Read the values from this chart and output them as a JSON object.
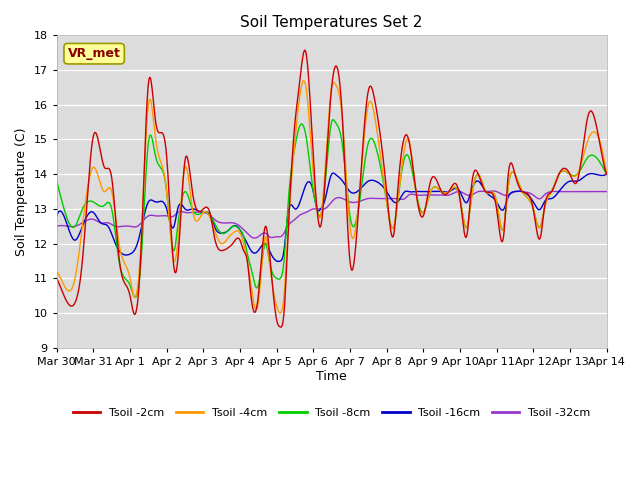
{
  "title": "Soil Temperatures Set 2",
  "xlabel": "Time",
  "ylabel": "Soil Temperature (C)",
  "ylim": [
    9.0,
    18.0
  ],
  "yticks": [
    9.0,
    10.0,
    11.0,
    12.0,
    13.0,
    14.0,
    15.0,
    16.0,
    17.0,
    18.0
  ],
  "xtick_labels": [
    "Mar 30",
    "Mar 31",
    "Apr 1",
    "Apr 2",
    "Apr 3",
    "Apr 4",
    "Apr 5",
    "Apr 6",
    "Apr 7",
    "Apr 8",
    "Apr 9",
    "Apr 10",
    "Apr 11",
    "Apr 12",
    "Apr 13",
    "Apr 14"
  ],
  "annotation_text": "VR_met",
  "colors": {
    "Tsoil -2cm": "#cc0000",
    "Tsoil -4cm": "#ff9900",
    "Tsoil -8cm": "#00cc00",
    "Tsoil -16cm": "#0000cc",
    "Tsoil -32cm": "#9933cc"
  },
  "bg_color": "#dcdcdc",
  "legend_labels": [
    "Tsoil -2cm",
    "Tsoil -4cm",
    "Tsoil -8cm",
    "Tsoil -16cm",
    "Tsoil -32cm"
  ],
  "keypoints_2cm": [
    [
      0.0,
      11.0
    ],
    [
      0.2,
      10.5
    ],
    [
      0.5,
      10.3
    ],
    [
      0.7,
      11.5
    ],
    [
      1.0,
      15.1
    ],
    [
      1.3,
      14.2
    ],
    [
      1.5,
      13.9
    ],
    [
      1.7,
      11.6
    ],
    [
      2.0,
      10.5
    ],
    [
      2.1,
      10.0
    ],
    [
      2.3,
      11.8
    ],
    [
      2.5,
      16.6
    ],
    [
      2.7,
      15.5
    ],
    [
      3.0,
      14.5
    ],
    [
      3.2,
      11.3
    ],
    [
      3.3,
      11.5
    ],
    [
      3.5,
      14.4
    ],
    [
      3.7,
      13.5
    ],
    [
      4.0,
      13.0
    ],
    [
      4.2,
      12.8
    ],
    [
      4.3,
      12.2
    ],
    [
      4.5,
      11.8
    ],
    [
      4.7,
      11.9
    ],
    [
      4.8,
      12.0
    ],
    [
      5.0,
      12.1
    ],
    [
      5.1,
      11.8
    ],
    [
      5.2,
      11.5
    ],
    [
      5.3,
      10.5
    ],
    [
      5.5,
      10.5
    ],
    [
      5.7,
      12.5
    ],
    [
      5.8,
      11.8
    ],
    [
      6.0,
      9.8
    ],
    [
      6.1,
      9.6
    ],
    [
      6.2,
      10.0
    ],
    [
      6.3,
      12.0
    ],
    [
      6.5,
      15.5
    ],
    [
      6.6,
      16.4
    ],
    [
      6.8,
      17.5
    ],
    [
      7.0,
      14.5
    ],
    [
      7.1,
      13.0
    ],
    [
      7.2,
      12.5
    ],
    [
      7.3,
      13.5
    ],
    [
      7.5,
      16.5
    ],
    [
      7.6,
      17.1
    ],
    [
      7.8,
      15.5
    ],
    [
      8.0,
      11.5
    ],
    [
      8.2,
      12.5
    ],
    [
      8.5,
      16.4
    ],
    [
      8.7,
      16.0
    ],
    [
      9.0,
      13.5
    ],
    [
      9.2,
      12.3
    ],
    [
      9.3,
      13.5
    ],
    [
      9.5,
      15.1
    ],
    [
      9.6,
      15.0
    ],
    [
      9.8,
      13.5
    ],
    [
      10.0,
      12.8
    ],
    [
      10.2,
      13.8
    ],
    [
      10.5,
      13.5
    ],
    [
      10.7,
      13.5
    ],
    [
      11.0,
      13.3
    ],
    [
      11.2,
      12.3
    ],
    [
      11.3,
      13.5
    ],
    [
      11.5,
      14.0
    ],
    [
      11.7,
      13.5
    ],
    [
      12.0,
      13.0
    ],
    [
      12.2,
      12.3
    ],
    [
      12.3,
      13.8
    ],
    [
      12.5,
      14.0
    ],
    [
      12.7,
      13.5
    ],
    [
      13.0,
      13.0
    ],
    [
      13.2,
      12.2
    ],
    [
      13.3,
      13.0
    ],
    [
      13.5,
      13.5
    ],
    [
      13.7,
      14.0
    ],
    [
      14.0,
      14.0
    ],
    [
      14.2,
      13.8
    ],
    [
      14.5,
      15.7
    ],
    [
      14.7,
      15.5
    ],
    [
      15.0,
      14.0
    ]
  ],
  "keypoints_4cm": [
    [
      0.0,
      11.2
    ],
    [
      0.2,
      10.8
    ],
    [
      0.5,
      11.0
    ],
    [
      0.7,
      12.5
    ],
    [
      1.0,
      14.2
    ],
    [
      1.3,
      13.5
    ],
    [
      1.5,
      13.5
    ],
    [
      1.7,
      12.0
    ],
    [
      2.0,
      11.0
    ],
    [
      2.1,
      10.5
    ],
    [
      2.3,
      12.0
    ],
    [
      2.5,
      16.0
    ],
    [
      2.7,
      15.0
    ],
    [
      3.0,
      13.5
    ],
    [
      3.2,
      11.5
    ],
    [
      3.3,
      12.0
    ],
    [
      3.5,
      14.2
    ],
    [
      3.7,
      13.0
    ],
    [
      4.0,
      12.9
    ],
    [
      4.2,
      12.7
    ],
    [
      4.3,
      12.4
    ],
    [
      4.5,
      12.0
    ],
    [
      4.7,
      12.2
    ],
    [
      4.8,
      12.3
    ],
    [
      5.0,
      12.3
    ],
    [
      5.1,
      12.0
    ],
    [
      5.2,
      11.5
    ],
    [
      5.3,
      10.8
    ],
    [
      5.5,
      10.3
    ],
    [
      5.7,
      12.2
    ],
    [
      5.8,
      11.5
    ],
    [
      6.0,
      10.2
    ],
    [
      6.1,
      10.0
    ],
    [
      6.2,
      10.5
    ],
    [
      6.3,
      12.2
    ],
    [
      6.5,
      15.0
    ],
    [
      6.6,
      16.0
    ],
    [
      6.8,
      16.5
    ],
    [
      7.0,
      14.0
    ],
    [
      7.1,
      13.0
    ],
    [
      7.2,
      12.8
    ],
    [
      7.3,
      13.8
    ],
    [
      7.5,
      16.5
    ],
    [
      7.6,
      16.6
    ],
    [
      7.8,
      15.5
    ],
    [
      8.0,
      12.5
    ],
    [
      8.2,
      12.8
    ],
    [
      8.5,
      16.0
    ],
    [
      8.7,
      15.5
    ],
    [
      9.0,
      13.2
    ],
    [
      9.2,
      12.5
    ],
    [
      9.3,
      13.2
    ],
    [
      9.5,
      14.8
    ],
    [
      9.6,
      15.0
    ],
    [
      9.8,
      13.5
    ],
    [
      10.0,
      12.9
    ],
    [
      10.2,
      13.5
    ],
    [
      10.5,
      13.5
    ],
    [
      10.7,
      13.5
    ],
    [
      11.0,
      13.3
    ],
    [
      11.2,
      12.5
    ],
    [
      11.3,
      13.2
    ],
    [
      11.5,
      14.0
    ],
    [
      11.7,
      13.5
    ],
    [
      12.0,
      13.2
    ],
    [
      12.2,
      12.5
    ],
    [
      12.3,
      13.5
    ],
    [
      12.5,
      14.0
    ],
    [
      12.7,
      13.5
    ],
    [
      13.0,
      13.0
    ],
    [
      13.2,
      12.5
    ],
    [
      13.3,
      13.0
    ],
    [
      13.5,
      13.5
    ],
    [
      13.7,
      14.0
    ],
    [
      14.0,
      14.0
    ],
    [
      14.2,
      14.0
    ],
    [
      14.5,
      15.0
    ],
    [
      14.7,
      15.2
    ],
    [
      15.0,
      14.0
    ]
  ],
  "keypoints_8cm": [
    [
      0.0,
      13.8
    ],
    [
      0.2,
      13.0
    ],
    [
      0.5,
      12.5
    ],
    [
      0.7,
      13.0
    ],
    [
      1.0,
      13.2
    ],
    [
      1.3,
      13.1
    ],
    [
      1.5,
      13.0
    ],
    [
      1.7,
      11.5
    ],
    [
      2.0,
      10.8
    ],
    [
      2.1,
      10.5
    ],
    [
      2.3,
      11.5
    ],
    [
      2.5,
      14.9
    ],
    [
      2.7,
      14.5
    ],
    [
      3.0,
      13.5
    ],
    [
      3.2,
      11.8
    ],
    [
      3.3,
      12.5
    ],
    [
      3.5,
      13.5
    ],
    [
      3.7,
      13.0
    ],
    [
      4.0,
      12.9
    ],
    [
      4.2,
      12.8
    ],
    [
      4.3,
      12.6
    ],
    [
      4.5,
      12.3
    ],
    [
      4.7,
      12.4
    ],
    [
      4.8,
      12.5
    ],
    [
      5.0,
      12.4
    ],
    [
      5.1,
      12.2
    ],
    [
      5.2,
      11.7
    ],
    [
      5.3,
      11.3
    ],
    [
      5.5,
      10.8
    ],
    [
      5.7,
      12.0
    ],
    [
      5.8,
      11.5
    ],
    [
      6.0,
      11.0
    ],
    [
      6.1,
      11.0
    ],
    [
      6.2,
      11.5
    ],
    [
      6.3,
      13.0
    ],
    [
      6.5,
      14.8
    ],
    [
      6.6,
      15.3
    ],
    [
      6.8,
      15.1
    ],
    [
      7.0,
      13.5
    ],
    [
      7.1,
      13.0
    ],
    [
      7.2,
      12.8
    ],
    [
      7.3,
      13.5
    ],
    [
      7.5,
      15.5
    ],
    [
      7.6,
      15.5
    ],
    [
      7.8,
      14.8
    ],
    [
      8.0,
      12.8
    ],
    [
      8.2,
      12.8
    ],
    [
      8.5,
      14.9
    ],
    [
      8.7,
      14.8
    ],
    [
      9.0,
      13.2
    ],
    [
      9.2,
      12.5
    ],
    [
      9.3,
      13.2
    ],
    [
      9.5,
      14.5
    ],
    [
      9.6,
      14.5
    ],
    [
      9.8,
      13.5
    ],
    [
      10.0,
      12.9
    ],
    [
      10.2,
      13.5
    ],
    [
      10.5,
      13.5
    ],
    [
      10.7,
      13.5
    ],
    [
      11.0,
      13.3
    ],
    [
      11.2,
      12.5
    ],
    [
      11.3,
      13.2
    ],
    [
      11.5,
      14.0
    ],
    [
      11.7,
      13.5
    ],
    [
      12.0,
      13.2
    ],
    [
      12.2,
      12.5
    ],
    [
      12.3,
      13.5
    ],
    [
      12.5,
      14.0
    ],
    [
      12.7,
      13.5
    ],
    [
      13.0,
      13.0
    ],
    [
      13.2,
      12.5
    ],
    [
      13.3,
      13.0
    ],
    [
      13.5,
      13.5
    ],
    [
      13.7,
      14.0
    ],
    [
      14.0,
      14.0
    ],
    [
      14.2,
      14.0
    ],
    [
      14.5,
      14.5
    ],
    [
      14.7,
      14.5
    ],
    [
      15.0,
      14.0
    ]
  ],
  "keypoints_16cm": [
    [
      0.0,
      12.8
    ],
    [
      0.3,
      12.5
    ],
    [
      0.5,
      12.1
    ],
    [
      0.7,
      12.5
    ],
    [
      1.0,
      12.9
    ],
    [
      1.2,
      12.6
    ],
    [
      1.4,
      12.5
    ],
    [
      1.6,
      12.0
    ],
    [
      1.8,
      11.7
    ],
    [
      2.0,
      11.7
    ],
    [
      2.2,
      12.0
    ],
    [
      2.5,
      13.2
    ],
    [
      2.7,
      13.2
    ],
    [
      3.0,
      13.0
    ],
    [
      3.2,
      12.5
    ],
    [
      3.3,
      13.0
    ],
    [
      3.5,
      13.0
    ],
    [
      3.7,
      13.0
    ],
    [
      4.0,
      12.9
    ],
    [
      4.2,
      12.8
    ],
    [
      4.3,
      12.5
    ],
    [
      4.5,
      12.3
    ],
    [
      4.7,
      12.4
    ],
    [
      4.8,
      12.5
    ],
    [
      5.0,
      12.4
    ],
    [
      5.1,
      12.2
    ],
    [
      5.2,
      12.0
    ],
    [
      5.3,
      11.8
    ],
    [
      5.5,
      11.8
    ],
    [
      5.7,
      12.0
    ],
    [
      5.8,
      11.8
    ],
    [
      6.0,
      11.5
    ],
    [
      6.1,
      11.5
    ],
    [
      6.2,
      11.8
    ],
    [
      6.3,
      12.8
    ],
    [
      6.5,
      13.0
    ],
    [
      6.6,
      13.1
    ],
    [
      6.8,
      13.7
    ],
    [
      7.0,
      13.5
    ],
    [
      7.1,
      13.0
    ],
    [
      7.2,
      13.0
    ],
    [
      7.3,
      13.2
    ],
    [
      7.5,
      14.0
    ],
    [
      7.6,
      14.0
    ],
    [
      7.8,
      13.8
    ],
    [
      8.0,
      13.5
    ],
    [
      8.2,
      13.5
    ],
    [
      8.5,
      13.8
    ],
    [
      8.7,
      13.8
    ],
    [
      9.0,
      13.5
    ],
    [
      9.2,
      13.2
    ],
    [
      9.3,
      13.2
    ],
    [
      9.5,
      13.5
    ],
    [
      9.6,
      13.5
    ],
    [
      9.8,
      13.5
    ],
    [
      10.0,
      13.5
    ],
    [
      10.2,
      13.5
    ],
    [
      10.5,
      13.5
    ],
    [
      10.7,
      13.5
    ],
    [
      11.0,
      13.5
    ],
    [
      11.2,
      13.2
    ],
    [
      11.3,
      13.5
    ],
    [
      11.5,
      13.8
    ],
    [
      11.7,
      13.5
    ],
    [
      12.0,
      13.2
    ],
    [
      12.2,
      13.0
    ],
    [
      12.3,
      13.3
    ],
    [
      12.5,
      13.5
    ],
    [
      12.7,
      13.5
    ],
    [
      13.0,
      13.2
    ],
    [
      13.2,
      13.0
    ],
    [
      13.3,
      13.2
    ],
    [
      13.5,
      13.3
    ],
    [
      13.7,
      13.5
    ],
    [
      14.0,
      13.8
    ],
    [
      14.2,
      13.8
    ],
    [
      14.5,
      14.0
    ],
    [
      14.7,
      14.0
    ],
    [
      15.0,
      14.0
    ]
  ],
  "keypoints_32cm": [
    [
      0.0,
      12.5
    ],
    [
      0.3,
      12.5
    ],
    [
      0.5,
      12.5
    ],
    [
      0.7,
      12.6
    ],
    [
      1.0,
      12.7
    ],
    [
      1.2,
      12.6
    ],
    [
      1.4,
      12.6
    ],
    [
      1.6,
      12.5
    ],
    [
      1.8,
      12.5
    ],
    [
      2.0,
      12.5
    ],
    [
      2.2,
      12.5
    ],
    [
      2.5,
      12.8
    ],
    [
      2.7,
      12.8
    ],
    [
      3.0,
      12.8
    ],
    [
      3.2,
      12.8
    ],
    [
      3.3,
      12.9
    ],
    [
      3.5,
      12.9
    ],
    [
      3.7,
      12.9
    ],
    [
      4.0,
      12.9
    ],
    [
      4.2,
      12.8
    ],
    [
      4.3,
      12.7
    ],
    [
      4.5,
      12.6
    ],
    [
      4.7,
      12.6
    ],
    [
      4.8,
      12.6
    ],
    [
      5.0,
      12.5
    ],
    [
      5.1,
      12.4
    ],
    [
      5.2,
      12.3
    ],
    [
      5.3,
      12.2
    ],
    [
      5.5,
      12.2
    ],
    [
      5.7,
      12.3
    ],
    [
      5.8,
      12.2
    ],
    [
      6.0,
      12.2
    ],
    [
      6.1,
      12.2
    ],
    [
      6.2,
      12.3
    ],
    [
      6.3,
      12.5
    ],
    [
      6.5,
      12.7
    ],
    [
      6.6,
      12.8
    ],
    [
      6.8,
      12.9
    ],
    [
      7.0,
      13.0
    ],
    [
      7.1,
      13.0
    ],
    [
      7.2,
      13.0
    ],
    [
      7.3,
      13.0
    ],
    [
      7.5,
      13.2
    ],
    [
      7.6,
      13.3
    ],
    [
      7.8,
      13.3
    ],
    [
      8.0,
      13.2
    ],
    [
      8.2,
      13.2
    ],
    [
      8.5,
      13.3
    ],
    [
      8.7,
      13.3
    ],
    [
      9.0,
      13.3
    ],
    [
      9.2,
      13.3
    ],
    [
      9.3,
      13.3
    ],
    [
      9.5,
      13.3
    ],
    [
      9.6,
      13.4
    ],
    [
      9.8,
      13.4
    ],
    [
      10.0,
      13.4
    ],
    [
      10.2,
      13.4
    ],
    [
      10.5,
      13.4
    ],
    [
      10.7,
      13.4
    ],
    [
      11.0,
      13.5
    ],
    [
      11.2,
      13.4
    ],
    [
      11.3,
      13.4
    ],
    [
      11.5,
      13.5
    ],
    [
      11.7,
      13.5
    ],
    [
      12.0,
      13.5
    ],
    [
      12.2,
      13.4
    ],
    [
      12.3,
      13.4
    ],
    [
      12.5,
      13.5
    ],
    [
      12.7,
      13.5
    ],
    [
      13.0,
      13.4
    ],
    [
      13.2,
      13.3
    ],
    [
      13.3,
      13.4
    ],
    [
      13.5,
      13.5
    ],
    [
      13.7,
      13.5
    ],
    [
      14.0,
      13.5
    ],
    [
      14.2,
      13.5
    ],
    [
      14.5,
      13.5
    ],
    [
      14.7,
      13.5
    ],
    [
      15.0,
      13.5
    ]
  ]
}
